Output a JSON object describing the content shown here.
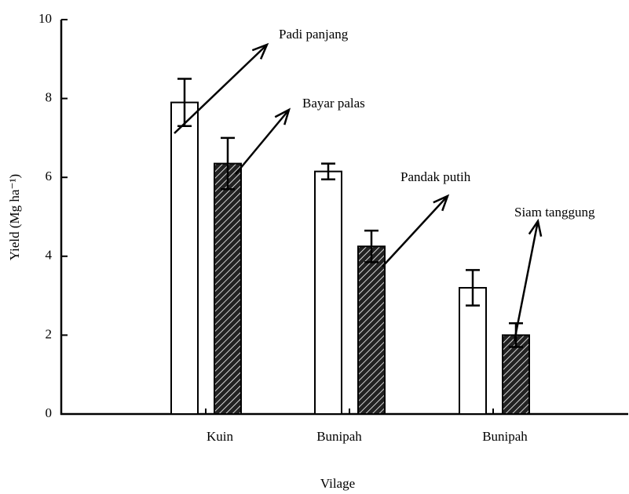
{
  "chart_data": {
    "type": "bar",
    "xlabel": "Vilage",
    "ylabel": "Yield (Mg ha⁻¹)",
    "categories": [
      "Kuin",
      "Bunipah",
      "Bunipah"
    ],
    "series": [
      {
        "color": "#ffffff",
        "values": [
          7.9,
          6.15,
          3.2
        ],
        "errors": [
          0.6,
          0.2,
          0.45
        ]
      },
      {
        "color": "#222222",
        "pattern": "hatch",
        "values": [
          6.35,
          4.25,
          2.0
        ],
        "errors": [
          0.65,
          0.4,
          0.3
        ]
      }
    ],
    "annotations": [
      "Padi panjang",
      "Bayar palas",
      "Pandak putih",
      "Siam tanggung"
    ],
    "ylim": [
      0,
      10
    ],
    "yticks": [
      0,
      2,
      4,
      6,
      8,
      10
    ],
    "grid": false
  }
}
